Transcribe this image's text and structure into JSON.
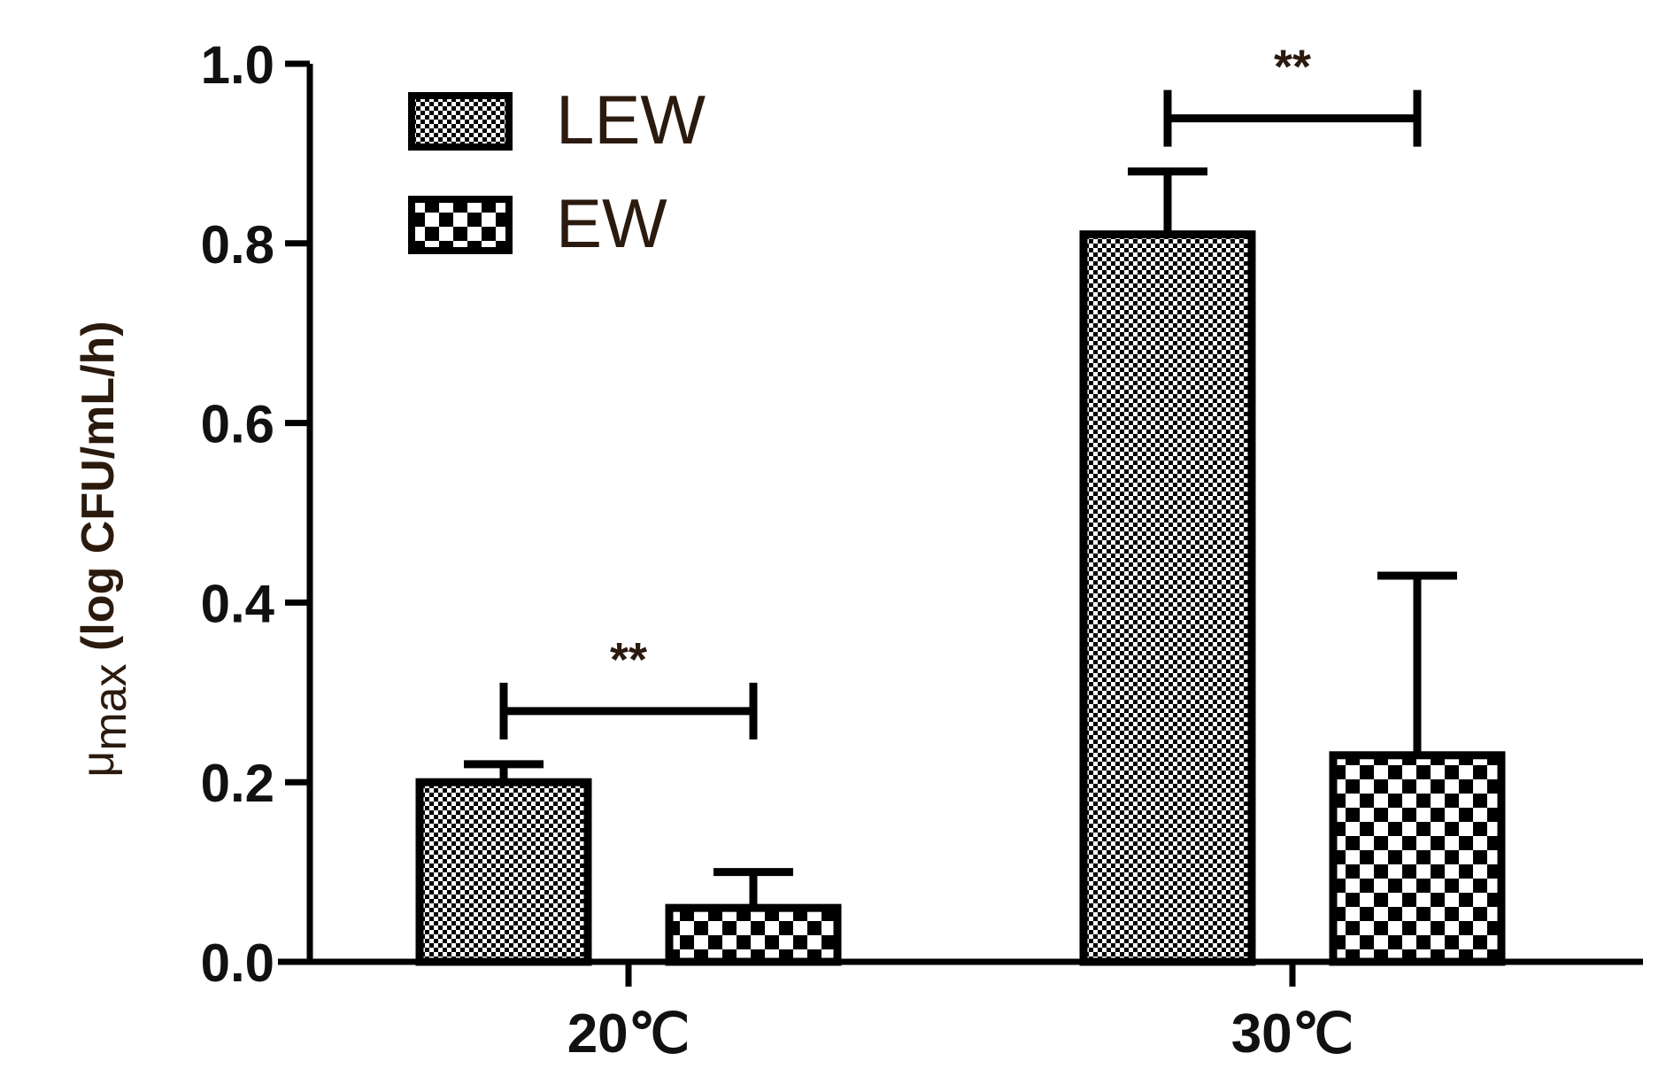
{
  "chart_data": {
    "type": "bar",
    "categories": [
      "20℃",
      "30℃"
    ],
    "series": [
      {
        "name": "LEW",
        "values": [
          0.2,
          0.81
        ],
        "errors": [
          0.02,
          0.07
        ],
        "pattern": "fine-checker"
      },
      {
        "name": "EW",
        "values": [
          0.06,
          0.23
        ],
        "errors": [
          0.04,
          0.2
        ],
        "pattern": "coarse-checker"
      }
    ],
    "ylabel_symbol": "μ",
    "ylabel_subscript": "max",
    "ylabel_unit": "(log CFU/mL/h)",
    "ylim": [
      0.0,
      1.0
    ],
    "yticks": [
      "0.0",
      "0.2",
      "0.4",
      "0.6",
      "0.8",
      "1.0"
    ],
    "significance": [
      {
        "category_index": 0,
        "label": "**"
      },
      {
        "category_index": 1,
        "label": "**"
      }
    ],
    "legend_position": "top-left",
    "grid": false,
    "colors": {
      "bar_stroke": "#000000",
      "text": "#111111",
      "legend_text": "#2b1a0e"
    }
  }
}
